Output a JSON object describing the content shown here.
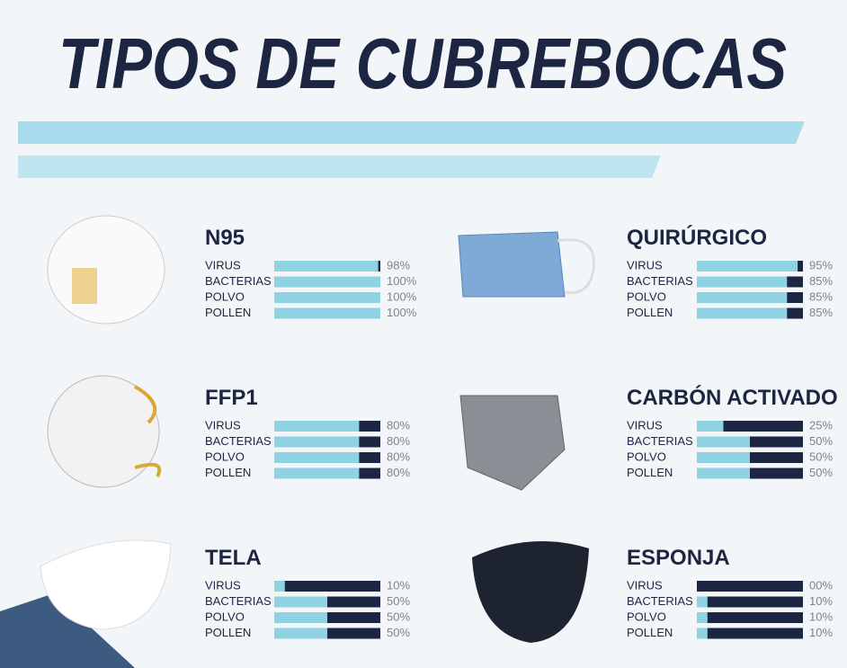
{
  "title": "TIPOS DE CUBREBOCAS",
  "masks": [
    {
      "name": "N95",
      "labels": [
        "VIRUS",
        "BACTERIAS",
        "POLVO",
        "POLLEN"
      ],
      "values": [
        98,
        100,
        100,
        100
      ],
      "value_labels": [
        "98%",
        "100%",
        "100%",
        "100%"
      ]
    },
    {
      "name": "QUIRÚRGICO",
      "labels": [
        "VIRUS",
        "BACTERIAS",
        "POLVO",
        "POLLEN"
      ],
      "values": [
        95,
        85,
        85,
        85
      ],
      "value_labels": [
        "95%",
        "85%",
        "85%",
        "85%"
      ]
    },
    {
      "name": "FFP1",
      "labels": [
        "VIRUS",
        "BACTERIAS",
        "POLVO",
        "POLLEN"
      ],
      "values": [
        80,
        80,
        80,
        80
      ],
      "value_labels": [
        "80%",
        "80%",
        "80%",
        "80%"
      ]
    },
    {
      "name": "CARBÓN ACTIVADO",
      "labels": [
        "VIRUS",
        "BACTERIAS",
        "POLVO",
        "POLLEN"
      ],
      "values": [
        25,
        50,
        50,
        50
      ],
      "value_labels": [
        "25%",
        "50%",
        "50%",
        "50%"
      ]
    },
    {
      "name": "TELA",
      "labels": [
        "VIRUS",
        "BACTERIAS",
        "POLVO",
        "POLLEN"
      ],
      "values": [
        10,
        50,
        50,
        50
      ],
      "value_labels": [
        "10%",
        "50%",
        "50%",
        "50%"
      ]
    },
    {
      "name": "ESPONJA",
      "labels": [
        "VIRUS",
        "BACTERIAS",
        "POLVO",
        "POLLEN"
      ],
      "values": [
        0,
        10,
        10,
        10
      ],
      "value_labels": [
        "00%",
        "10%",
        "10%",
        "10%"
      ]
    }
  ]
}
